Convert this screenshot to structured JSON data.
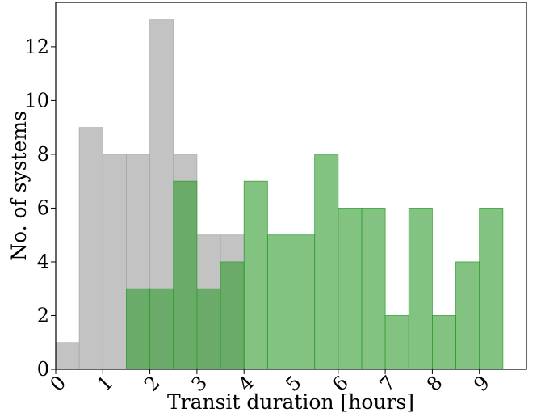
{
  "chart_data": {
    "type": "bar",
    "subtype": "overlapping-histogram",
    "title": "",
    "xlabel": "Transit duration [hours]",
    "ylabel": "No. of systems",
    "xlim": [
      0,
      10
    ],
    "ylim": [
      0,
      13.65
    ],
    "xticks": [
      0,
      1,
      2,
      3,
      4,
      5,
      6,
      7,
      8,
      9
    ],
    "yticks": [
      0,
      2,
      4,
      6,
      8,
      10,
      12
    ],
    "bin_width": 0.5,
    "bin_edges": [
      0,
      0.5,
      1,
      1.5,
      2,
      2.5,
      3,
      3.5,
      4,
      4.5,
      5,
      5.5,
      6,
      6.5,
      7,
      7.5,
      8,
      8.5,
      9,
      9.5
    ],
    "grid": false,
    "legend": "none",
    "series": [
      {
        "color": "#a9a9a9",
        "opacity": 0.7,
        "values": [
          1,
          9,
          8,
          8,
          13,
          8,
          5,
          5,
          0,
          0,
          0,
          0,
          0,
          0,
          0,
          0,
          0,
          0,
          0
        ]
      },
      {
        "color": "#2e9b2e",
        "opacity": 0.6,
        "values": [
          0,
          0,
          0,
          3,
          3,
          7,
          3,
          4,
          7,
          5,
          5,
          8,
          6,
          6,
          2,
          6,
          2,
          4,
          6
        ]
      }
    ]
  }
}
